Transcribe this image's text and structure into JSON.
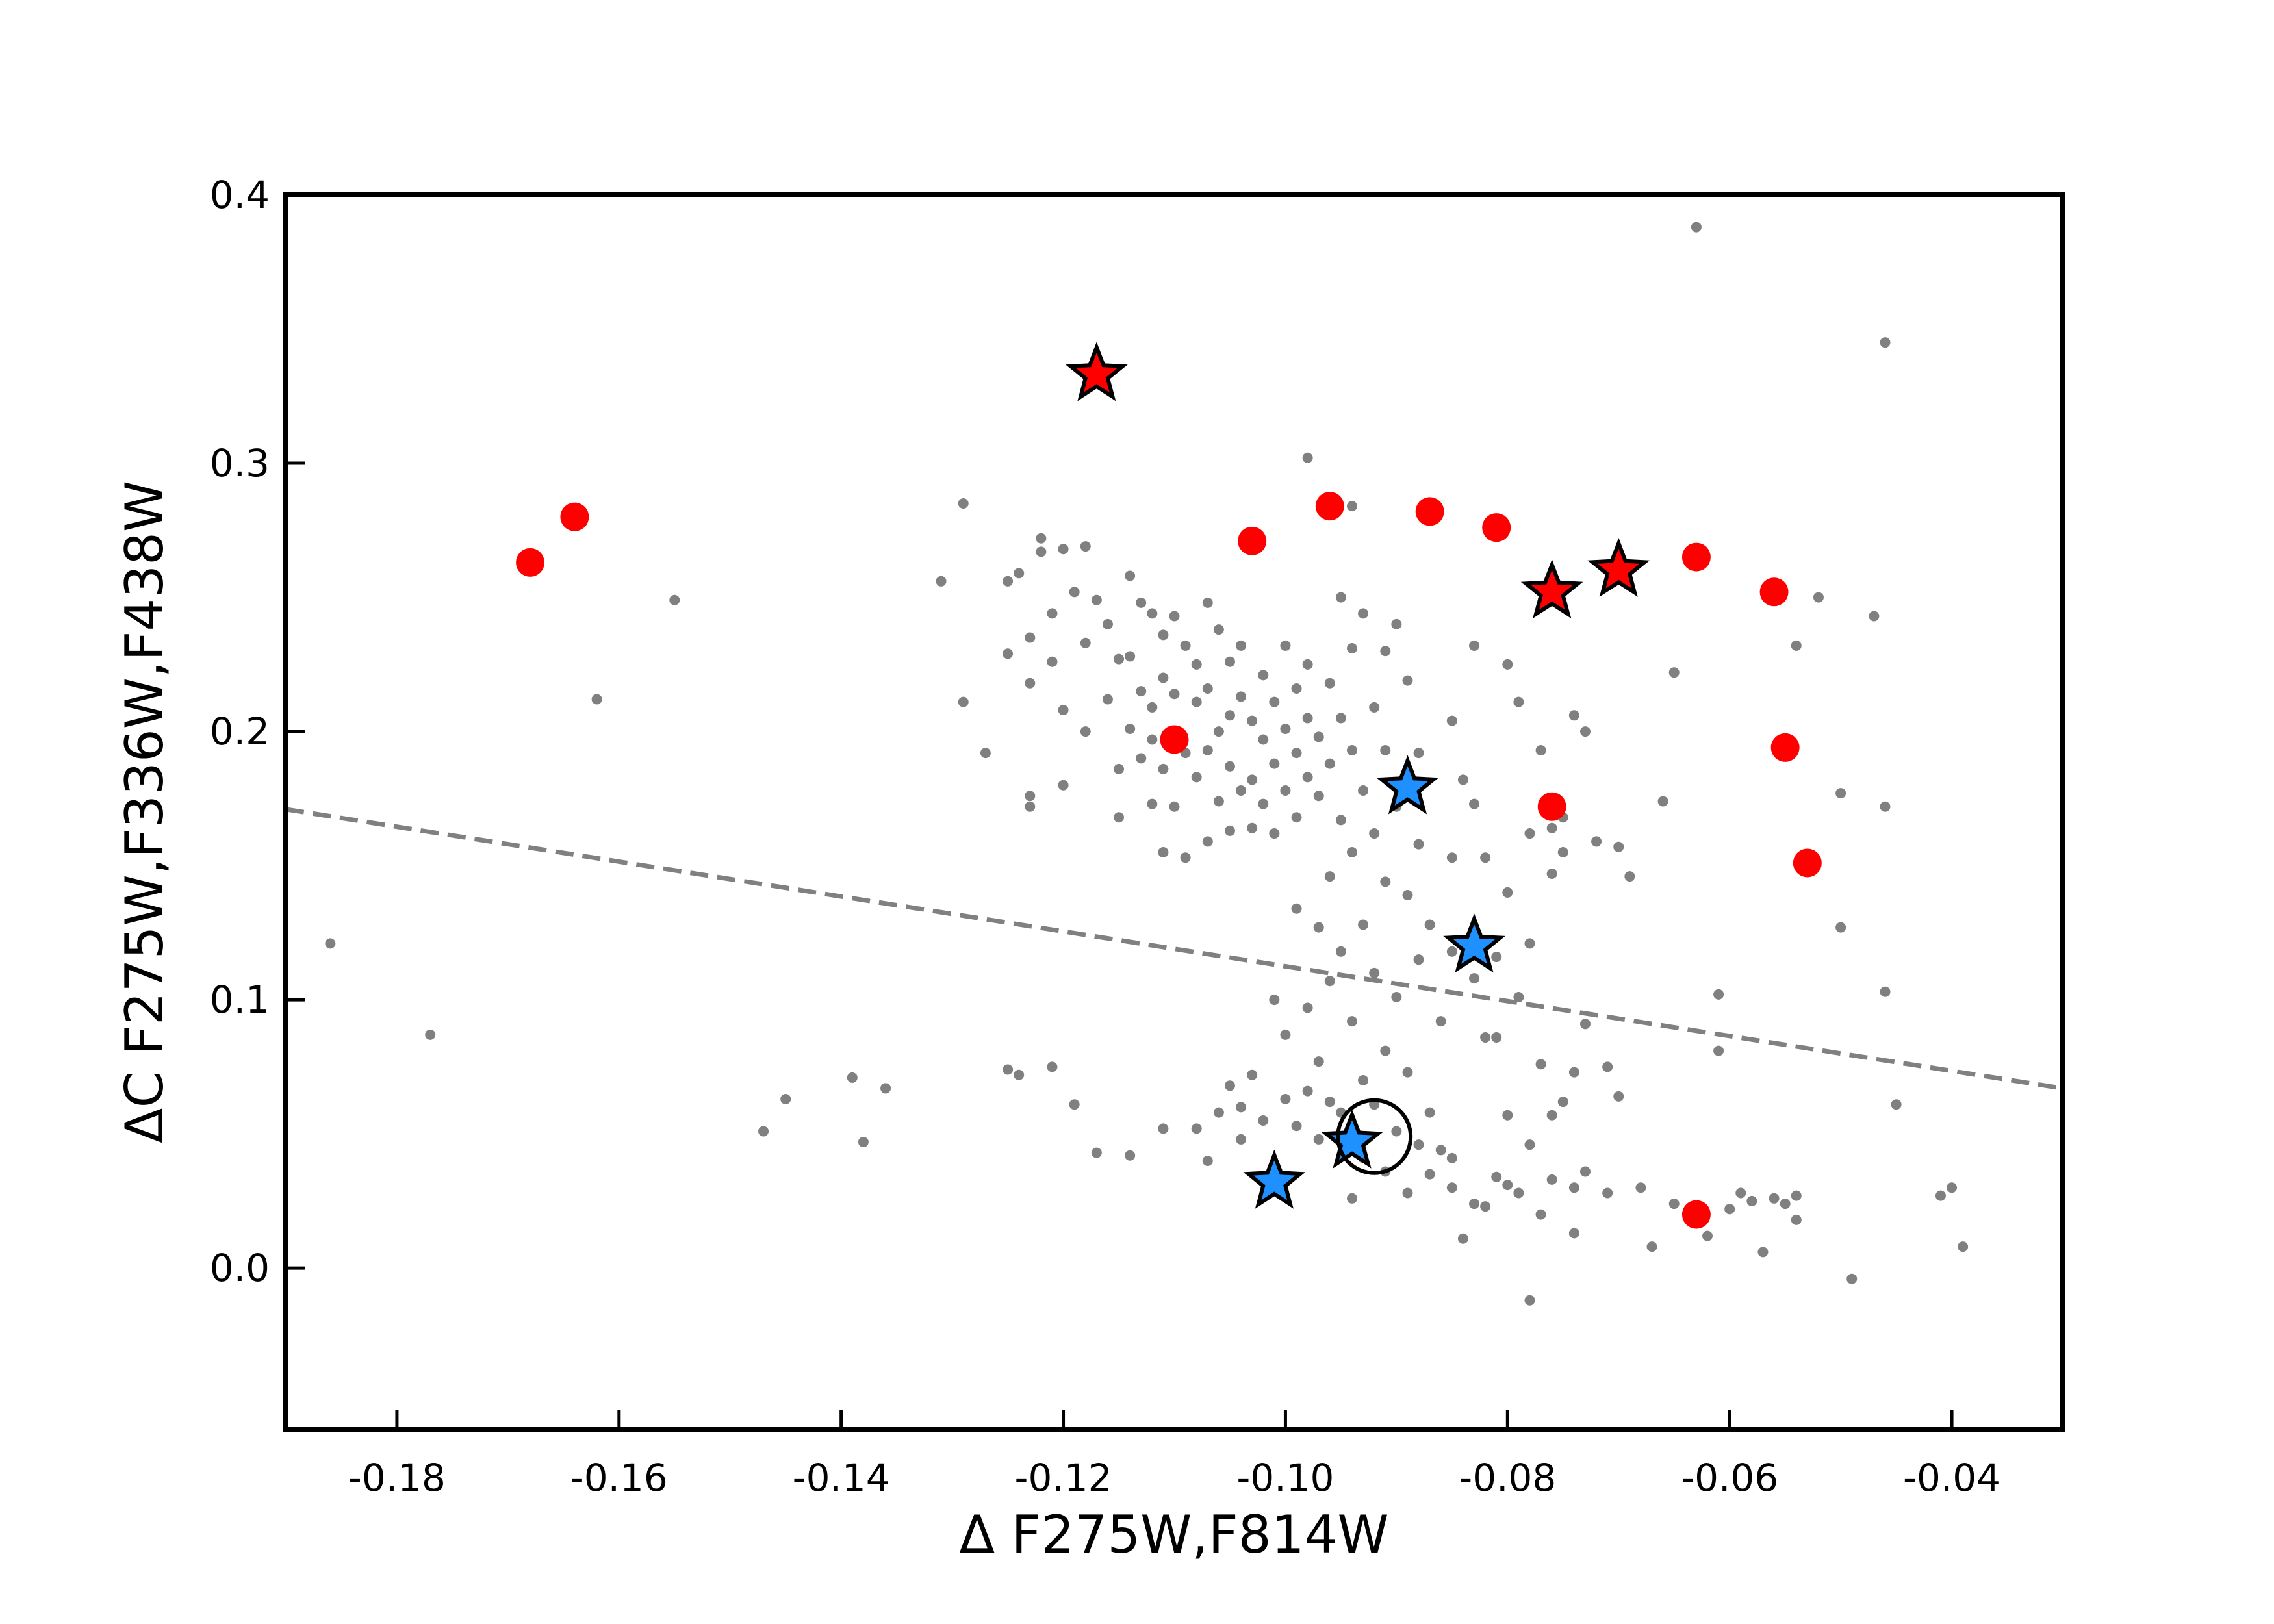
{
  "chart_data": {
    "type": "scatter",
    "title": "",
    "xlabel": "Δ F275W,F814W",
    "ylabel": "ΔC F275W,F336W,F438W",
    "xlim": [
      -0.19,
      -0.03
    ],
    "ylim": [
      -0.06,
      0.4
    ],
    "xticks": [
      -0.18,
      -0.16,
      -0.14,
      -0.12,
      -0.1,
      -0.08,
      -0.06,
      -0.04
    ],
    "xtick_labels": [
      "-0.18",
      "-0.16",
      "-0.14",
      "-0.12",
      "-0.10",
      "-0.08",
      "-0.06",
      "-0.04"
    ],
    "yticks": [
      0.0,
      0.1,
      0.2,
      0.3,
      0.4
    ],
    "ytick_labels": [
      "0.0",
      "0.1",
      "0.2",
      "0.3",
      "0.4"
    ],
    "grid": false,
    "legend": "none",
    "colors": {
      "background_points": "#808080",
      "red": "#ff0000",
      "blue": "#1e90ff",
      "outline": "#000000",
      "dashed_line": "#808080"
    },
    "dashed_line": {
      "x": [
        -0.19,
        -0.03
      ],
      "y": [
        0.171,
        0.067
      ]
    },
    "series": [
      {
        "marker": "small-dot",
        "color": "#808080",
        "points": [
          [
            -0.186,
            0.121
          ],
          [
            -0.177,
            0.087
          ],
          [
            -0.162,
            0.212
          ],
          [
            -0.155,
            0.249
          ],
          [
            -0.147,
            0.051
          ],
          [
            -0.145,
            0.063
          ],
          [
            -0.139,
            0.071
          ],
          [
            -0.138,
            0.047
          ],
          [
            -0.136,
            0.067
          ],
          [
            -0.131,
            0.256
          ],
          [
            -0.129,
            0.285
          ],
          [
            -0.129,
            0.211
          ],
          [
            -0.127,
            0.192
          ],
          [
            -0.125,
            0.256
          ],
          [
            -0.125,
            0.229
          ],
          [
            -0.125,
            0.074
          ],
          [
            -0.124,
            0.072
          ],
          [
            -0.124,
            0.259
          ],
          [
            -0.123,
            0.235
          ],
          [
            -0.123,
            0.218
          ],
          [
            -0.123,
            0.176
          ],
          [
            -0.123,
            0.172
          ],
          [
            -0.122,
            0.272
          ],
          [
            -0.122,
            0.267
          ],
          [
            -0.121,
            0.244
          ],
          [
            -0.121,
            0.226
          ],
          [
            -0.121,
            0.075
          ],
          [
            -0.12,
            0.268
          ],
          [
            -0.12,
            0.208
          ],
          [
            -0.12,
            0.18
          ],
          [
            -0.119,
            0.252
          ],
          [
            -0.119,
            0.061
          ],
          [
            -0.118,
            0.269
          ],
          [
            -0.118,
            0.233
          ],
          [
            -0.118,
            0.2
          ],
          [
            -0.117,
            0.249
          ],
          [
            -0.117,
            0.043
          ],
          [
            -0.116,
            0.24
          ],
          [
            -0.116,
            0.212
          ],
          [
            -0.115,
            0.186
          ],
          [
            -0.115,
            0.168
          ],
          [
            -0.115,
            0.227
          ],
          [
            -0.114,
            0.258
          ],
          [
            -0.114,
            0.228
          ],
          [
            -0.114,
            0.201
          ],
          [
            -0.114,
            0.042
          ],
          [
            -0.113,
            0.248
          ],
          [
            -0.113,
            0.215
          ],
          [
            -0.113,
            0.19
          ],
          [
            -0.112,
            0.244
          ],
          [
            -0.112,
            0.209
          ],
          [
            -0.112,
            0.197
          ],
          [
            -0.112,
            0.173
          ],
          [
            -0.111,
            0.236
          ],
          [
            -0.111,
            0.22
          ],
          [
            -0.111,
            0.186
          ],
          [
            -0.111,
            0.155
          ],
          [
            -0.111,
            0.052
          ],
          [
            -0.11,
            0.243
          ],
          [
            -0.11,
            0.214
          ],
          [
            -0.11,
            0.199
          ],
          [
            -0.11,
            0.172
          ],
          [
            -0.109,
            0.232
          ],
          [
            -0.109,
            0.192
          ],
          [
            -0.109,
            0.153
          ],
          [
            -0.108,
            0.225
          ],
          [
            -0.108,
            0.211
          ],
          [
            -0.108,
            0.183
          ],
          [
            -0.108,
            0.052
          ],
          [
            -0.107,
            0.248
          ],
          [
            -0.107,
            0.216
          ],
          [
            -0.107,
            0.193
          ],
          [
            -0.107,
            0.159
          ],
          [
            -0.107,
            0.04
          ],
          [
            -0.106,
            0.238
          ],
          [
            -0.106,
            0.2
          ],
          [
            -0.106,
            0.174
          ],
          [
            -0.106,
            0.058
          ],
          [
            -0.105,
            0.226
          ],
          [
            -0.105,
            0.206
          ],
          [
            -0.105,
            0.187
          ],
          [
            -0.105,
            0.163
          ],
          [
            -0.105,
            0.068
          ],
          [
            -0.104,
            0.232
          ],
          [
            -0.104,
            0.213
          ],
          [
            -0.104,
            0.178
          ],
          [
            -0.104,
            0.06
          ],
          [
            -0.104,
            0.048
          ],
          [
            -0.103,
            0.204
          ],
          [
            -0.103,
            0.182
          ],
          [
            -0.103,
            0.164
          ],
          [
            -0.103,
            0.072
          ],
          [
            -0.102,
            0.221
          ],
          [
            -0.102,
            0.197
          ],
          [
            -0.102,
            0.173
          ],
          [
            -0.102,
            0.055
          ],
          [
            -0.101,
            0.211
          ],
          [
            -0.101,
            0.188
          ],
          [
            -0.101,
            0.162
          ],
          [
            -0.101,
            0.1
          ],
          [
            -0.1,
            0.232
          ],
          [
            -0.1,
            0.201
          ],
          [
            -0.1,
            0.178
          ],
          [
            -0.1,
            0.087
          ],
          [
            -0.1,
            0.063
          ],
          [
            -0.099,
            0.216
          ],
          [
            -0.099,
            0.192
          ],
          [
            -0.099,
            0.168
          ],
          [
            -0.099,
            0.134
          ],
          [
            -0.099,
            0.053
          ],
          [
            -0.098,
            0.302
          ],
          [
            -0.098,
            0.225
          ],
          [
            -0.098,
            0.205
          ],
          [
            -0.098,
            0.183
          ],
          [
            -0.098,
            0.097
          ],
          [
            -0.098,
            0.066
          ],
          [
            -0.097,
            0.198
          ],
          [
            -0.097,
            0.176
          ],
          [
            -0.097,
            0.127
          ],
          [
            -0.097,
            0.077
          ],
          [
            -0.097,
            0.048
          ],
          [
            -0.096,
            0.218
          ],
          [
            -0.096,
            0.188
          ],
          [
            -0.096,
            0.146
          ],
          [
            -0.096,
            0.107
          ],
          [
            -0.096,
            0.062
          ],
          [
            -0.095,
            0.25
          ],
          [
            -0.095,
            0.205
          ],
          [
            -0.095,
            0.167
          ],
          [
            -0.095,
            0.118
          ],
          [
            -0.095,
            0.058
          ],
          [
            -0.094,
            0.284
          ],
          [
            -0.094,
            0.231
          ],
          [
            -0.094,
            0.193
          ],
          [
            -0.094,
            0.155
          ],
          [
            -0.094,
            0.092
          ],
          [
            -0.094,
            0.026
          ],
          [
            -0.093,
            0.244
          ],
          [
            -0.093,
            0.178
          ],
          [
            -0.093,
            0.128
          ],
          [
            -0.093,
            0.07
          ],
          [
            -0.093,
            0.041
          ],
          [
            -0.092,
            0.209
          ],
          [
            -0.092,
            0.162
          ],
          [
            -0.092,
            0.11
          ],
          [
            -0.092,
            0.061
          ],
          [
            -0.091,
            0.23
          ],
          [
            -0.091,
            0.193
          ],
          [
            -0.091,
            0.144
          ],
          [
            -0.091,
            0.081
          ],
          [
            -0.091,
            0.036
          ],
          [
            -0.09,
            0.24
          ],
          [
            -0.09,
            0.172
          ],
          [
            -0.09,
            0.101
          ],
          [
            -0.09,
            0.051
          ],
          [
            -0.089,
            0.219
          ],
          [
            -0.089,
            0.182
          ],
          [
            -0.089,
            0.139
          ],
          [
            -0.089,
            0.073
          ],
          [
            -0.089,
            0.028
          ],
          [
            -0.088,
            0.192
          ],
          [
            -0.088,
            0.158
          ],
          [
            -0.088,
            0.115
          ],
          [
            -0.088,
            0.046
          ],
          [
            -0.087,
            0.128
          ],
          [
            -0.087,
            0.058
          ],
          [
            -0.087,
            0.035
          ],
          [
            -0.086,
            0.092
          ],
          [
            -0.086,
            0.044
          ],
          [
            -0.085,
            0.204
          ],
          [
            -0.085,
            0.153
          ],
          [
            -0.085,
            0.118
          ],
          [
            -0.085,
            0.041
          ],
          [
            -0.085,
            0.03
          ],
          [
            -0.084,
            0.182
          ],
          [
            -0.084,
            0.011
          ],
          [
            -0.083,
            0.232
          ],
          [
            -0.083,
            0.173
          ],
          [
            -0.083,
            0.108
          ],
          [
            -0.083,
            0.024
          ],
          [
            -0.082,
            0.153
          ],
          [
            -0.082,
            0.086
          ],
          [
            -0.082,
            0.023
          ],
          [
            -0.081,
            0.116
          ],
          [
            -0.081,
            0.086
          ],
          [
            -0.081,
            0.034
          ],
          [
            -0.08,
            0.225
          ],
          [
            -0.08,
            0.14
          ],
          [
            -0.08,
            0.057
          ],
          [
            -0.08,
            0.031
          ],
          [
            -0.079,
            0.211
          ],
          [
            -0.079,
            0.101
          ],
          [
            -0.079,
            0.028
          ],
          [
            -0.078,
            0.162
          ],
          [
            -0.078,
            0.121
          ],
          [
            -0.078,
            0.046
          ],
          [
            -0.078,
            -0.012
          ],
          [
            -0.077,
            0.193
          ],
          [
            -0.077,
            0.076
          ],
          [
            -0.077,
            0.02
          ],
          [
            -0.076,
            0.147
          ],
          [
            -0.076,
            0.057
          ],
          [
            -0.076,
            0.033
          ],
          [
            -0.075,
            0.168
          ],
          [
            -0.075,
            0.155
          ],
          [
            -0.075,
            0.062
          ],
          [
            -0.074,
            0.206
          ],
          [
            -0.074,
            0.073
          ],
          [
            -0.074,
            0.03
          ],
          [
            -0.074,
            0.013
          ],
          [
            -0.073,
            0.2
          ],
          [
            -0.073,
            0.091
          ],
          [
            -0.073,
            0.036
          ],
          [
            -0.072,
            0.159
          ],
          [
            -0.071,
            0.075
          ],
          [
            -0.071,
            0.028
          ],
          [
            -0.07,
            0.157
          ],
          [
            -0.07,
            0.064
          ],
          [
            -0.069,
            0.146
          ],
          [
            -0.068,
            0.03
          ],
          [
            -0.067,
            0.008
          ],
          [
            -0.066,
            0.174
          ],
          [
            -0.065,
            0.222
          ],
          [
            -0.065,
            0.024
          ],
          [
            -0.063,
            0.388
          ],
          [
            -0.062,
            0.012
          ],
          [
            -0.061,
            0.102
          ],
          [
            -0.061,
            0.081
          ],
          [
            -0.06,
            0.022
          ],
          [
            -0.059,
            0.028
          ],
          [
            -0.058,
            0.025
          ],
          [
            -0.057,
            0.006
          ],
          [
            -0.056,
            0.026
          ],
          [
            -0.055,
            0.024
          ],
          [
            -0.054,
            0.232
          ],
          [
            -0.054,
            0.027
          ],
          [
            -0.054,
            0.018
          ],
          [
            -0.052,
            0.25
          ],
          [
            -0.05,
            0.177
          ],
          [
            -0.05,
            0.127
          ],
          [
            -0.049,
            -0.004
          ],
          [
            -0.047,
            0.243
          ],
          [
            -0.046,
            0.345
          ],
          [
            -0.046,
            0.172
          ],
          [
            -0.046,
            0.103
          ],
          [
            -0.045,
            0.061
          ],
          [
            -0.041,
            0.027
          ],
          [
            -0.04,
            0.03
          ],
          [
            -0.039,
            0.008
          ],
          [
            -0.076,
            0.164
          ]
        ]
      },
      {
        "marker": "circle",
        "color": "#ff0000",
        "points": [
          [
            -0.168,
            0.263
          ],
          [
            -0.164,
            0.28
          ],
          [
            -0.11,
            0.197
          ],
          [
            -0.103,
            0.271
          ],
          [
            -0.096,
            0.284
          ],
          [
            -0.087,
            0.282
          ],
          [
            -0.081,
            0.276
          ],
          [
            -0.076,
            0.172
          ],
          [
            -0.063,
            0.265
          ],
          [
            -0.056,
            0.252
          ],
          [
            -0.055,
            0.194
          ],
          [
            -0.053,
            0.151
          ],
          [
            -0.063,
            0.02
          ]
        ]
      },
      {
        "marker": "star",
        "color": "#ff0000",
        "points": [
          [
            -0.117,
            0.333
          ],
          [
            -0.076,
            0.252
          ],
          [
            -0.07,
            0.26
          ]
        ]
      },
      {
        "marker": "star",
        "color": "#1e90ff",
        "points": [
          [
            -0.089,
            0.179
          ],
          [
            -0.083,
            0.12
          ],
          [
            -0.094,
            0.047
          ],
          [
            -0.101,
            0.032
          ]
        ]
      },
      {
        "marker": "open-circle",
        "color": "#000000",
        "points": [
          [
            -0.092,
            0.049
          ]
        ]
      }
    ]
  }
}
